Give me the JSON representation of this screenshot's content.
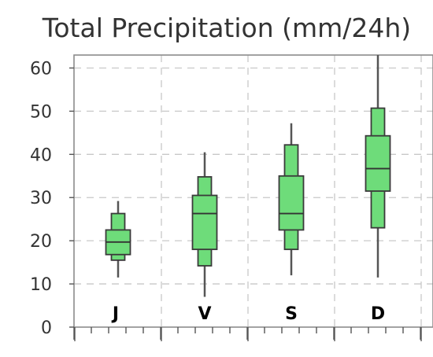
{
  "chart_data": {
    "type": "box",
    "title": "Total Precipitation (mm/24h)",
    "xlabel": "",
    "ylabel": "",
    "ylim": [
      0,
      63
    ],
    "yticks": [
      0,
      10,
      20,
      30,
      40,
      50,
      60
    ],
    "grid": true,
    "categories": [
      "J",
      "V",
      "S",
      "D"
    ],
    "boxes": [
      {
        "label": "J",
        "min": 11.5,
        "p10": 15.5,
        "q1": 16.8,
        "median": 19.7,
        "q3": 22.5,
        "p90": 26.3,
        "max": 29.2
      },
      {
        "label": "V",
        "min": 7.0,
        "p10": 14.2,
        "q1": 18.0,
        "median": 26.3,
        "q3": 30.5,
        "p90": 34.8,
        "max": 40.5
      },
      {
        "label": "S",
        "min": 12.0,
        "p10": 18.0,
        "q1": 22.5,
        "median": 26.3,
        "q3": 35.0,
        "p90": 42.2,
        "max": 47.2
      },
      {
        "label": "D",
        "min": 11.5,
        "p10": 23.0,
        "q1": 31.5,
        "median": 36.7,
        "q3": 44.3,
        "p90": 50.7,
        "max": 63.0
      }
    ]
  }
}
